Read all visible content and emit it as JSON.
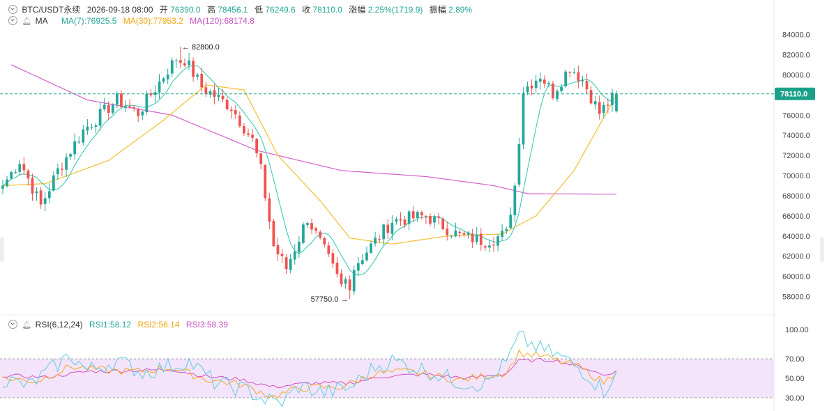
{
  "header": {
    "symbol": "BTC/USDT永续",
    "datetime": "2026-09-18 08:00",
    "open_label": "开",
    "open": "76390.0",
    "high_label": "高",
    "high": "78456.1",
    "low_label": "低",
    "low": "76249.6",
    "close_label": "收",
    "close": "78110.0",
    "change_label": "涨幅",
    "change": "2.25%(1719.9)",
    "amplitude_label": "振幅",
    "amplitude": "2.89%"
  },
  "ma_legend": {
    "label": "MA",
    "ma7": "MA(7):76925.5",
    "ma30": "MA(30):77953.2",
    "ma120": "MA(120):68174.8"
  },
  "rsi_legend": {
    "label": "RSI(6,12,24)",
    "rsi1": "RSI1:58.12",
    "rsi2": "RSI2:56.14",
    "rsi3": "RSI3:58.39"
  },
  "colors": {
    "up": "#26a69a",
    "down": "#ef5350",
    "ma7": "#3ec9b0",
    "ma30": "#f5bd2e",
    "ma120": "#d55fc9",
    "rsi1": "#5ccde0",
    "rsi2": "#f5a623",
    "rsi3": "#d64fc3",
    "rsi_band": "#f3e4fb",
    "price_tag": "#1ba08a"
  },
  "chart_data": [
    {
      "type": "candlestick",
      "y_ticks": [
        "58000.0",
        "60000.0",
        "62000.0",
        "64000.0",
        "66000.0",
        "68000.0",
        "70000.0",
        "72000.0",
        "74000.0",
        "76000.0",
        "78000.0",
        "80000.0",
        "82000.0",
        "84000.0"
      ],
      "ylim": [
        57000,
        84800
      ],
      "current_price": "78110.0",
      "annotations": {
        "high": "82800.0",
        "low": "57750.0"
      },
      "candles_count": 146,
      "key_points": [
        [
          0,
          69000
        ],
        [
          4,
          71500
        ],
        [
          9,
          67000
        ],
        [
          13,
          70500
        ],
        [
          19,
          74500
        ],
        [
          27,
          77500
        ],
        [
          32,
          76200
        ],
        [
          39,
          80500
        ],
        [
          42,
          82200
        ],
        [
          47,
          78800
        ],
        [
          54,
          76800
        ],
        [
          59,
          73500
        ],
        [
          61,
          70500
        ],
        [
          64,
          63000
        ],
        [
          67,
          60800
        ],
        [
          72,
          65800
        ],
        [
          76,
          62500
        ],
        [
          80,
          59000
        ],
        [
          84,
          61500
        ],
        [
          92,
          65500
        ],
        [
          100,
          66000
        ],
        [
          108,
          64000
        ],
        [
          114,
          63500
        ],
        [
          119,
          64200
        ],
        [
          121,
          69000
        ],
        [
          123,
          78500
        ],
        [
          127,
          80000
        ],
        [
          130,
          78200
        ],
        [
          134,
          80800
        ],
        [
          137,
          79500
        ],
        [
          141,
          76200
        ],
        [
          145,
          78110
        ]
      ],
      "high_index": 42,
      "low_index": 82,
      "ma120_approx": [
        [
          2,
          81000
        ],
        [
          20,
          77500
        ],
        [
          40,
          76000
        ],
        [
          60,
          72500
        ],
        [
          80,
          70500
        ],
        [
          100,
          69900
        ],
        [
          116,
          69000
        ],
        [
          124,
          68200
        ],
        [
          145,
          68150
        ]
      ],
      "ma30_approx": [
        [
          0,
          69000
        ],
        [
          10,
          69200
        ],
        [
          25,
          71500
        ],
        [
          38,
          75500
        ],
        [
          48,
          79000
        ],
        [
          57,
          78500
        ],
        [
          65,
          72000
        ],
        [
          75,
          67500
        ],
        [
          82,
          63800
        ],
        [
          92,
          63200
        ],
        [
          105,
          64000
        ],
        [
          118,
          64200
        ],
        [
          126,
          66000
        ],
        [
          135,
          70500
        ],
        [
          145,
          78000
        ]
      ]
    },
    {
      "type": "line",
      "title": "RSI(6,12,24)",
      "y_ticks": [
        "30.00",
        "50.00",
        "70.00",
        "100.00"
      ],
      "ylim": [
        20,
        108
      ],
      "band": [
        30,
        70
      ],
      "rsi1_key": [
        [
          0,
          49
        ],
        [
          6,
          42
        ],
        [
          12,
          61
        ],
        [
          16,
          74
        ],
        [
          20,
          58
        ],
        [
          27,
          68
        ],
        [
          33,
          56
        ],
        [
          40,
          63
        ],
        [
          44,
          67
        ],
        [
          50,
          46
        ],
        [
          58,
          37
        ],
        [
          62,
          28
        ],
        [
          66,
          24
        ],
        [
          70,
          42
        ],
        [
          76,
          35
        ],
        [
          82,
          40
        ],
        [
          88,
          62
        ],
        [
          92,
          68
        ],
        [
          100,
          58
        ],
        [
          108,
          46
        ],
        [
          114,
          44
        ],
        [
          119,
          66
        ],
        [
          122,
          92
        ],
        [
          127,
          80
        ],
        [
          132,
          72
        ],
        [
          138,
          55
        ],
        [
          142,
          37
        ],
        [
          145,
          58
        ]
      ],
      "rsi2_key": [
        [
          0,
          50
        ],
        [
          8,
          47
        ],
        [
          16,
          62
        ],
        [
          24,
          58
        ],
        [
          32,
          57
        ],
        [
          40,
          61
        ],
        [
          48,
          49
        ],
        [
          56,
          44
        ],
        [
          64,
          31
        ],
        [
          70,
          40
        ],
        [
          80,
          41
        ],
        [
          88,
          55
        ],
        [
          96,
          57
        ],
        [
          108,
          48
        ],
        [
          119,
          56
        ],
        [
          122,
          76
        ],
        [
          128,
          72
        ],
        [
          136,
          62
        ],
        [
          142,
          46
        ],
        [
          145,
          56
        ]
      ],
      "rsi3_key": [
        [
          0,
          53
        ],
        [
          10,
          51
        ],
        [
          20,
          57
        ],
        [
          30,
          58
        ],
        [
          40,
          59
        ],
        [
          48,
          52
        ],
        [
          56,
          49
        ],
        [
          64,
          41
        ],
        [
          72,
          45
        ],
        [
          82,
          45
        ],
        [
          90,
          52
        ],
        [
          100,
          54
        ],
        [
          110,
          50
        ],
        [
          119,
          55
        ],
        [
          122,
          68
        ],
        [
          130,
          69
        ],
        [
          138,
          60
        ],
        [
          142,
          53
        ],
        [
          145,
          58
        ]
      ]
    }
  ]
}
